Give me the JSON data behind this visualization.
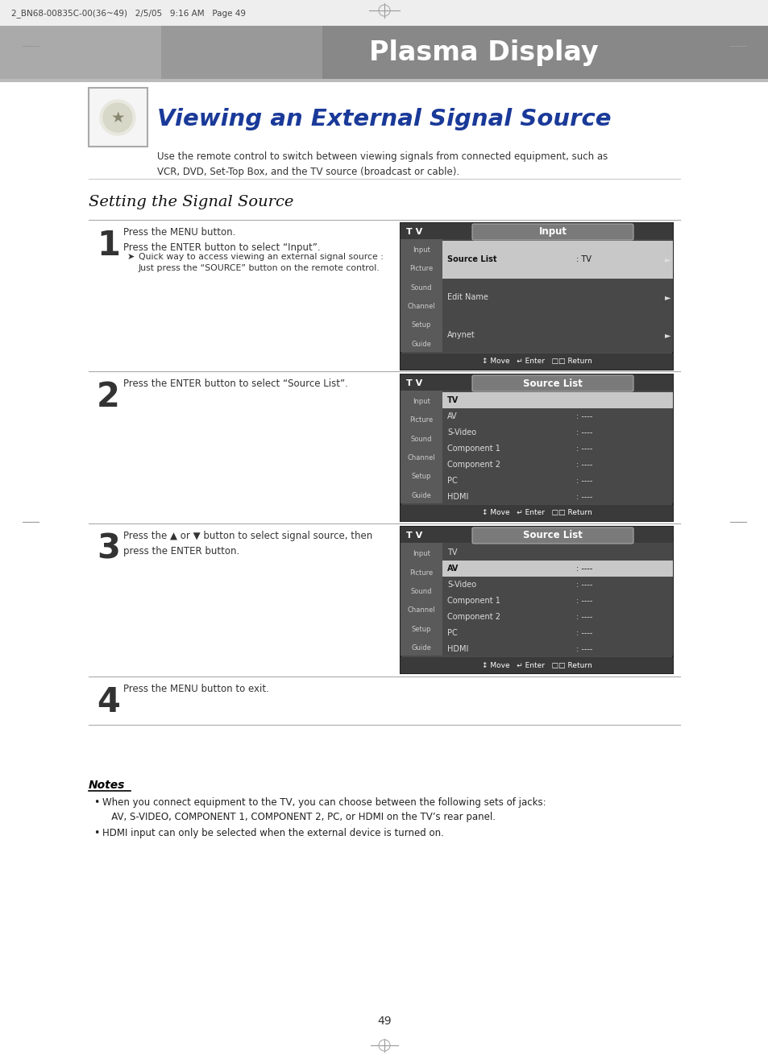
{
  "page_bg": "#ffffff",
  "header_text": "2_BN68-00835C-00(36~49)   2/5/05   9:16 AM   Page 49",
  "banner_text": "Plasma Display",
  "title": "Viewing an External Signal Source",
  "subtitle": "Use the remote control to switch between viewing signals from connected equipment, such as\nVCR, DVD, Set-Top Box, and the TV source (broadcast or cable).",
  "section_title": "Setting the Signal Source",
  "steps": [
    {
      "num": "1",
      "text": "Press the MENU button.\nPress the ENTER button to select “Input”.",
      "note": "Quick way to access viewing an external signal source :\nJust press the “SOURCE” button on the remote control."
    },
    {
      "num": "2",
      "text": "Press the ENTER button to select “Source List”.",
      "note": ""
    },
    {
      "num": "3",
      "text": "Press the ▲ or ▼ button to select signal source, then\npress the ENTER button.",
      "note": ""
    },
    {
      "num": "4",
      "text": "Press the MENU button to exit.",
      "note": ""
    }
  ],
  "notes_title": "Notes",
  "notes": [
    "When you connect equipment to the TV, you can choose between the following sets of jacks:\n   AV, S-VIDEO, COMPONENT 1, COMPONENT 2, PC, or HDMI on the TV’s rear panel.",
    "HDMI input can only be selected when the external device is turned on."
  ],
  "page_number": "49",
  "menu_tv_label": "T V",
  "menu1_title": "Input",
  "menu1_items": [
    {
      "name": "Source List",
      "value": ": TV",
      "arrow": true,
      "selected": true
    },
    {
      "name": "Edit Name",
      "value": "",
      "arrow": true,
      "selected": false
    },
    {
      "name": "Anynet",
      "value": "",
      "arrow": true,
      "selected": false
    }
  ],
  "menu1_sidebar": [
    "Input",
    "Picture",
    "Sound",
    "Channel",
    "Setup",
    "Guide"
  ],
  "menu2_title": "Source List",
  "menu2_items": [
    {
      "name": "TV",
      "value": "",
      "selected": true
    },
    {
      "name": "AV",
      "value": ": ----",
      "selected": false
    },
    {
      "name": "S-Video",
      "value": ": ----",
      "selected": false
    },
    {
      "name": "Component 1",
      "value": ": ----",
      "selected": false
    },
    {
      "name": "Component 2",
      "value": ": ----",
      "selected": false
    },
    {
      "name": "PC",
      "value": ": ----",
      "selected": false
    },
    {
      "name": "HDMI",
      "value": ": ----",
      "selected": false
    }
  ],
  "menu2_sidebar": [
    "Input",
    "Picture",
    "Sound",
    "Channel",
    "Setup",
    "Guide"
  ],
  "menu3_title": "Source List",
  "menu3_items": [
    {
      "name": "TV",
      "value": "",
      "selected": false
    },
    {
      "name": "AV",
      "value": ": ----",
      "selected": true
    },
    {
      "name": "S-Video",
      "value": ": ----",
      "selected": false
    },
    {
      "name": "Component 1",
      "value": ": ----",
      "selected": false
    },
    {
      "name": "Component 2",
      "value": ": ----",
      "selected": false
    },
    {
      "name": "PC",
      "value": ": ----",
      "selected": false
    },
    {
      "name": "HDMI",
      "value": ": ----",
      "selected": false
    }
  ],
  "menu3_sidebar": [
    "Input",
    "Picture",
    "Sound",
    "Channel",
    "Setup",
    "Guide"
  ],
  "footer_bar": "↕ Move   ↵ Enter   □□ Return"
}
